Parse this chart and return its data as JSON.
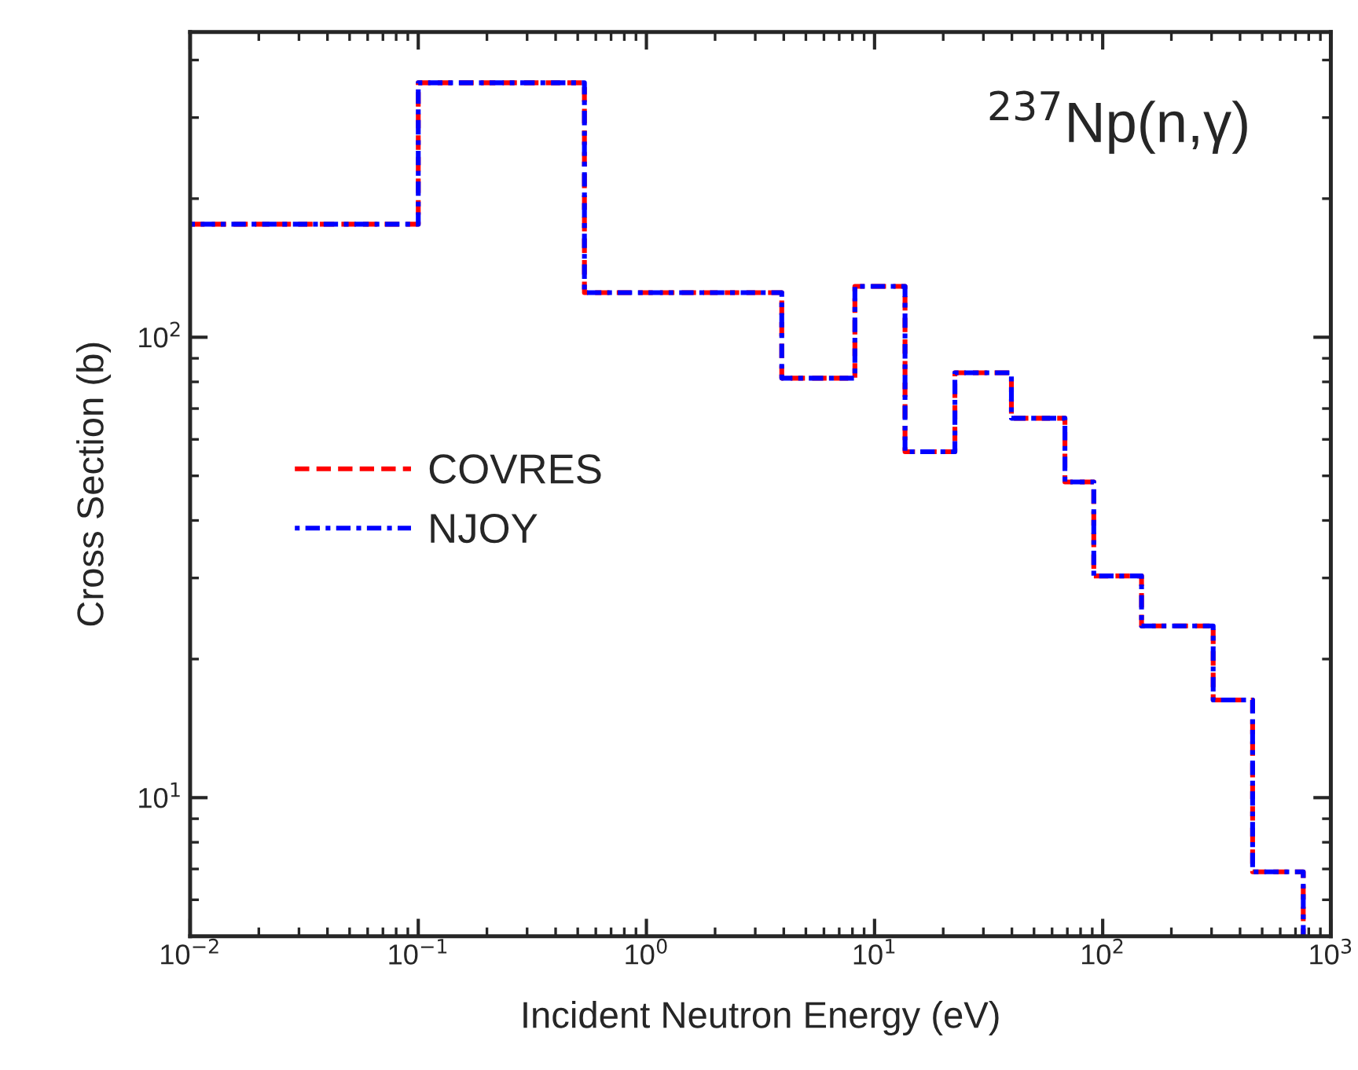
{
  "chart_data": {
    "type": "step",
    "xlabel": "Incident Neutron Energy (eV)",
    "ylabel": "Cross Section (b)",
    "annotations": [
      "$^{237}$Np(n,γ)"
    ],
    "x": [
      0.01,
      0.1,
      0.535,
      3.92,
      8.2,
      13.6,
      22.5,
      39.8,
      68.3,
      91.4,
      148,
      305,
      454,
      757
    ],
    "series": [
      {
        "name": "COVRES",
        "color": "#ff0000",
        "line_style": "dashed",
        "values": [
          176,
          357,
          125,
          81.5,
          129,
          56.4,
          83.7,
          66.7,
          48.5,
          30.3,
          23.6,
          16.3,
          6.9,
          5
        ]
      },
      {
        "name": "NJOY",
        "color": "#0000ff",
        "line_style": "dotted",
        "values": [
          176,
          357,
          125,
          81.5,
          129,
          56.4,
          83.7,
          66.7,
          48.5,
          30.3,
          23.6,
          16.3,
          6.9,
          5
        ]
      }
    ],
    "log": "xy",
    "xlim": [
      0.01,
      1000
    ],
    "ylim": [
      5,
      460
    ],
    "xticks": [
      {
        "value": 0.01,
        "label": "10$^{−2}$"
      },
      {
        "value": 0.1,
        "label": "10$^{−1}$"
      },
      {
        "value": 1,
        "label": "10$^{0}$"
      },
      {
        "value": 10,
        "label": "10$^{1}$"
      },
      {
        "value": 100,
        "label": "10$^{2}$"
      },
      {
        "value": 1000,
        "label": "10$^{3}$"
      }
    ],
    "yticks": [
      {
        "value": 10,
        "label": "10$^{1}$"
      },
      {
        "value": 100,
        "label": "10$^{2}$"
      }
    ],
    "legend": "left",
    "grid": false
  }
}
